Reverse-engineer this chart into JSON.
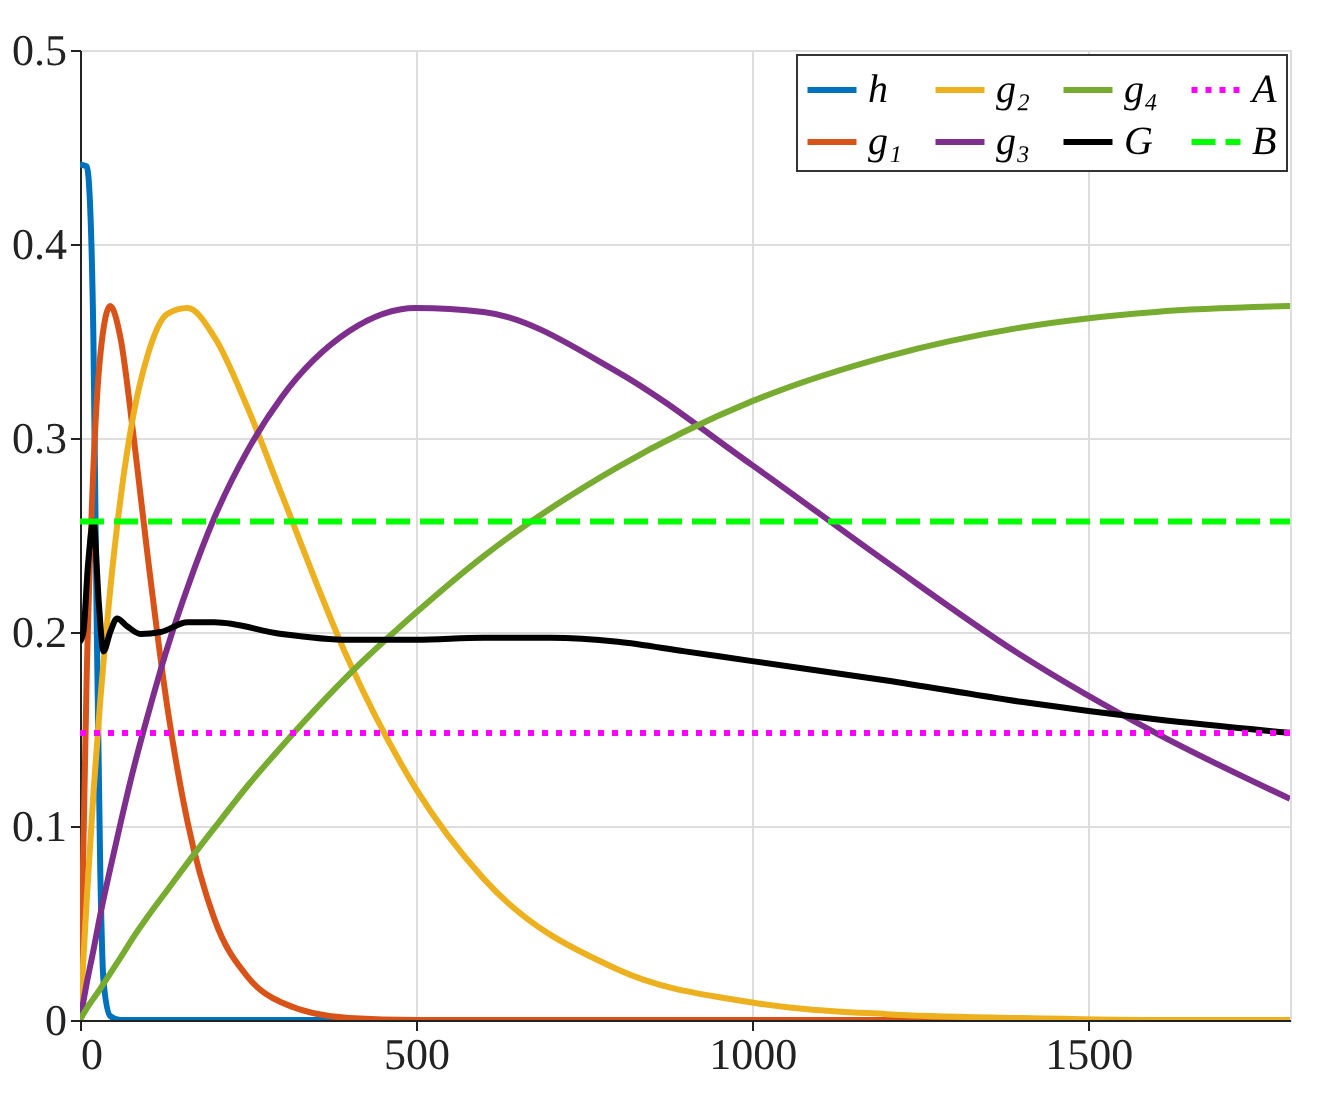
{
  "chart_data": {
    "type": "line",
    "xlim": [
      0,
      1800
    ],
    "xticks": [
      0,
      500,
      1000,
      1500
    ],
    "ylim": [
      0,
      0.5
    ],
    "yticks": [
      0,
      0.1,
      0.2,
      0.3,
      0.4,
      0.5
    ],
    "grid": true,
    "legend": "top right",
    "marker": "none",
    "series": [
      {
        "name": "h",
        "color": "#0072bd",
        "line_style": "solid",
        "x": [
          0,
          10,
          15,
          20,
          25,
          30,
          35,
          45,
          60,
          1800
        ],
        "values": [
          0.441,
          0.44,
          0.42,
          0.35,
          0.2,
          0.08,
          0.02,
          0.002,
          0,
          0
        ]
      },
      {
        "name": "g₁",
        "color": "#d95319",
        "line_style": "solid",
        "x": [
          0,
          10,
          20,
          30,
          45,
          60,
          80,
          100,
          130,
          160,
          200,
          250,
          300,
          400,
          500,
          600,
          800,
          1000,
          1200,
          1400
        ],
        "values": [
          0,
          0.178,
          0.285,
          0.342,
          0.368,
          0.352,
          0.3,
          0.241,
          0.161,
          0.102,
          0.052,
          0.022,
          0.009,
          0.001,
          0,
          0,
          0,
          0,
          0,
          0
        ]
      },
      {
        "name": "g₂",
        "color": "#edb120",
        "line_style": "solid",
        "x": [
          0,
          10,
          20,
          30,
          45,
          60,
          80,
          100,
          130,
          160,
          200,
          250,
          300,
          400,
          500,
          600,
          800,
          1000,
          1200,
          1400,
          1600,
          1800
        ],
        "values": [
          0,
          0.062,
          0.117,
          0.164,
          0.222,
          0.268,
          0.313,
          0.342,
          0.364,
          0.367,
          0.352,
          0.315,
          0.271,
          0.185,
          0.119,
          0.073,
          0.026,
          0.009,
          0.003,
          0.001,
          0,
          0
        ]
      },
      {
        "name": "g₃",
        "color": "#7e2f8e",
        "line_style": "solid",
        "x": [
          0,
          10,
          20,
          30,
          45,
          60,
          80,
          100,
          130,
          160,
          200,
          250,
          300,
          400,
          500,
          600,
          800,
          1000,
          1200,
          1400,
          1600,
          1800
        ],
        "values": [
          0,
          0.019,
          0.036,
          0.054,
          0.078,
          0.101,
          0.13,
          0.156,
          0.192,
          0.223,
          0.259,
          0.294,
          0.321,
          0.355,
          0.367,
          0.365,
          0.334,
          0.286,
          0.236,
          0.188,
          0.148,
          0.114
        ]
      },
      {
        "name": "g₄",
        "color": "#77ac30",
        "line_style": "solid",
        "x": [
          0,
          10,
          20,
          30,
          45,
          60,
          80,
          100,
          130,
          160,
          200,
          250,
          300,
          400,
          500,
          600,
          800,
          1000,
          1200,
          1400,
          1600,
          1800
        ],
        "values": [
          0,
          0.006,
          0.011,
          0.016,
          0.024,
          0.032,
          0.043,
          0.053,
          0.067,
          0.081,
          0.099,
          0.121,
          0.141,
          0.178,
          0.21,
          0.239,
          0.285,
          0.319,
          0.342,
          0.357,
          0.365,
          0.368
        ]
      },
      {
        "name": "G",
        "color": "#000000",
        "line_style": "solid",
        "x": [
          0,
          5,
          12,
          20,
          28,
          35,
          45,
          55,
          70,
          90,
          120,
          160,
          200,
          300,
          400,
          500,
          600,
          700,
          800,
          900,
          1000,
          1200,
          1400,
          1600,
          1800
        ],
        "values": [
          0.195,
          0.2,
          0.235,
          0.257,
          0.215,
          0.19,
          0.2,
          0.207,
          0.203,
          0.199,
          0.2,
          0.205,
          0.205,
          0.199,
          0.196,
          0.196,
          0.197,
          0.197,
          0.195,
          0.19,
          0.185,
          0.175,
          0.164,
          0.155,
          0.148
        ]
      },
      {
        "name": "A",
        "color": "#ff00ff",
        "line_style": "dotted",
        "x": [
          0,
          1800
        ],
        "values": [
          0.148,
          0.148
        ]
      },
      {
        "name": "B",
        "color": "#00ff00",
        "line_style": "dashed",
        "x": [
          0,
          1800
        ],
        "values": [
          0.257,
          0.257
        ]
      }
    ]
  }
}
